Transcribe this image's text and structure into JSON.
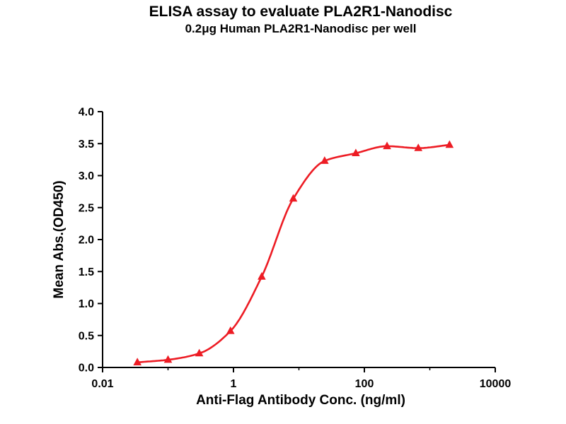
{
  "page": {
    "background": "#ffffff"
  },
  "chart_data": {
    "type": "line",
    "title": "ELISA assay to evaluate PLA2R1-Nanodisc",
    "subtitle": "0.2μg Human PLA2R1-Nanodisc per well",
    "xlabel": "Anti-Flag Antibody Conc. (ng/ml)",
    "ylabel": "Mean Abs.(OD450)",
    "x_scale": "log",
    "xlim": [
      0.01,
      10000
    ],
    "ylim": [
      0.0,
      4.0
    ],
    "grid": false,
    "legend": "none",
    "axis_color": "#000000",
    "x_ticks": [
      {
        "value": 0.01,
        "label": "0.01"
      },
      {
        "value": 1,
        "label": "1"
      },
      {
        "value": 100,
        "label": "100"
      },
      {
        "value": 10000,
        "label": "10000"
      }
    ],
    "x_minor_ticks": [
      0.1,
      10,
      1000
    ],
    "y_ticks": [
      {
        "value": 0.0,
        "label": "0.0"
      },
      {
        "value": 0.5,
        "label": "0.5"
      },
      {
        "value": 1.0,
        "label": "1.0"
      },
      {
        "value": 1.5,
        "label": "1.5"
      },
      {
        "value": 2.0,
        "label": "2.0"
      },
      {
        "value": 2.5,
        "label": "2.5"
      },
      {
        "value": 3.0,
        "label": "3.0"
      },
      {
        "value": 3.5,
        "label": "3.5"
      },
      {
        "value": 4.0,
        "label": "4.0"
      }
    ],
    "series": [
      {
        "name": "PLA2R1-Nanodisc",
        "marker": "triangle",
        "color": "#ed1c24",
        "x": [
          0.034,
          0.1,
          0.3,
          0.9,
          2.7,
          8.2,
          24.7,
          74,
          222,
          667,
          2000
        ],
        "y": [
          0.08,
          0.12,
          0.22,
          0.57,
          1.42,
          2.64,
          3.23,
          3.35,
          3.46,
          3.43,
          3.48
        ]
      }
    ]
  }
}
